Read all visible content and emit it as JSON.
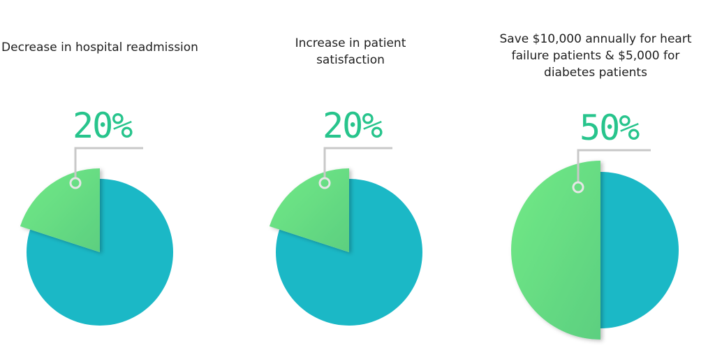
{
  "colors": {
    "remainder": "#1bb8c6",
    "highlight_light": "#72ea86",
    "highlight_dark": "#5ccf80",
    "percent_text": "#27c48c",
    "leader_line": "#c8c8c8"
  },
  "chart_data": [
    {
      "type": "pie",
      "title": "Decrease in hospital readmission",
      "label": "20%",
      "values": [
        20,
        80
      ],
      "highlighted": 0
    },
    {
      "type": "pie",
      "title": "Increase in patient satisfaction",
      "label": "20%",
      "values": [
        20,
        80
      ],
      "highlighted": 0
    },
    {
      "type": "pie",
      "title": "Save $10,000 annually for heart failure patients & $5,000 for diabetes patients",
      "label": "50%",
      "values": [
        50,
        50
      ],
      "highlighted": 0
    }
  ]
}
